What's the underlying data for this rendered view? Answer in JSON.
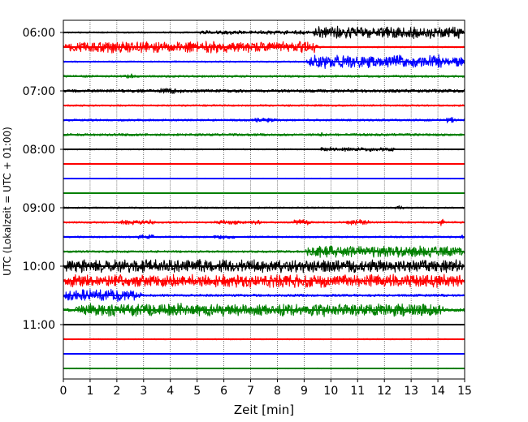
{
  "chart_data": {
    "type": "line",
    "chart_kind": "helicorder seismogram",
    "xlabel": "Zeit  [min]",
    "ylabel": "UTC (Lokalzeit = UTC + 01:00)",
    "xlim": [
      0,
      15
    ],
    "x_ticks": [
      0,
      1,
      2,
      3,
      4,
      5,
      6,
      7,
      8,
      9,
      10,
      11,
      12,
      13,
      14,
      15
    ],
    "y_tick_labels": [
      "06:00",
      "07:00",
      "08:00",
      "09:00",
      "10:00",
      "11:00"
    ],
    "grid": "vertical dotted at each minute",
    "trace_colors": [
      "#000000",
      "#ff0000",
      "#0000ff",
      "#008000"
    ],
    "traces": [
      {
        "start": "06:00",
        "color": "#000000",
        "noise": 0.05,
        "bursts": [
          {
            "from": 5.0,
            "to": 9.3,
            "amp": 0.15
          },
          {
            "from": 9.3,
            "to": 15,
            "amp": 0.45
          }
        ]
      },
      {
        "start": "06:15",
        "color": "#ff0000",
        "noise": 0.05,
        "bursts": [
          {
            "from": 0,
            "to": 9.6,
            "amp": 0.42
          }
        ]
      },
      {
        "start": "06:30",
        "color": "#0000ff",
        "noise": 0.05,
        "bursts": [
          {
            "from": 9.1,
            "to": 15,
            "amp": 0.48
          }
        ]
      },
      {
        "start": "06:45",
        "color": "#008000",
        "noise": 0.07,
        "bursts": [
          {
            "from": 2.2,
            "to": 2.7,
            "amp": 0.2
          }
        ]
      },
      {
        "start": "07:00",
        "color": "#000000",
        "noise": 0.1,
        "bursts": [
          {
            "from": 3.5,
            "to": 4.5,
            "amp": 0.22
          }
        ]
      },
      {
        "start": "07:15",
        "color": "#ff0000",
        "noise": 0.06,
        "bursts": []
      },
      {
        "start": "07:30",
        "color": "#0000ff",
        "noise": 0.07,
        "bursts": [
          {
            "from": 7.0,
            "to": 8.0,
            "amp": 0.18
          },
          {
            "from": 14.2,
            "to": 14.7,
            "amp": 0.25
          }
        ]
      },
      {
        "start": "07:45",
        "color": "#008000",
        "noise": 0.08,
        "bursts": [
          {
            "from": 9.5,
            "to": 9.8,
            "amp": 0.2
          }
        ]
      },
      {
        "start": "08:00",
        "color": "#000000",
        "noise": 0.04,
        "bursts": [
          {
            "from": 9.5,
            "to": 12.5,
            "amp": 0.15
          }
        ]
      },
      {
        "start": "08:15",
        "color": "#ff0000",
        "noise": 0.03,
        "bursts": []
      },
      {
        "start": "08:30",
        "color": "#0000ff",
        "noise": 0.03,
        "bursts": []
      },
      {
        "start": "08:45",
        "color": "#008000",
        "noise": 0.03,
        "bursts": []
      },
      {
        "start": "09:00",
        "color": "#000000",
        "noise": 0.05,
        "bursts": [
          {
            "from": 12.3,
            "to": 12.8,
            "amp": 0.2
          }
        ]
      },
      {
        "start": "09:15",
        "color": "#ff0000",
        "noise": 0.06,
        "bursts": [
          {
            "from": 2.0,
            "to": 3.5,
            "amp": 0.18
          },
          {
            "from": 5.5,
            "to": 7.5,
            "amp": 0.16
          },
          {
            "from": 8.5,
            "to": 9.3,
            "amp": 0.22
          },
          {
            "from": 10.5,
            "to": 11.5,
            "amp": 0.2
          },
          {
            "from": 14.0,
            "to": 14.3,
            "amp": 0.28
          }
        ]
      },
      {
        "start": "09:30",
        "color": "#0000ff",
        "noise": 0.06,
        "bursts": [
          {
            "from": 2.7,
            "to": 3.5,
            "amp": 0.2
          },
          {
            "from": 5.5,
            "to": 6.5,
            "amp": 0.16
          },
          {
            "from": 14.8,
            "to": 15,
            "amp": 0.22
          }
        ]
      },
      {
        "start": "09:45",
        "color": "#008000",
        "noise": 0.07,
        "bursts": [
          {
            "from": 9.0,
            "to": 15,
            "amp": 0.42
          }
        ]
      },
      {
        "start": "10:00",
        "color": "#000000",
        "noise": 0.12,
        "bursts": [
          {
            "from": 0,
            "to": 15,
            "amp": 0.48
          }
        ]
      },
      {
        "start": "10:15",
        "color": "#ff0000",
        "noise": 0.12,
        "bursts": [
          {
            "from": 0,
            "to": 15,
            "amp": 0.48
          }
        ]
      },
      {
        "start": "10:30",
        "color": "#0000ff",
        "noise": 0.08,
        "bursts": [
          {
            "from": 0,
            "to": 3.0,
            "amp": 0.45
          }
        ]
      },
      {
        "start": "10:45",
        "color": "#008000",
        "noise": 0.1,
        "bursts": [
          {
            "from": 0.4,
            "to": 14.3,
            "amp": 0.48
          }
        ]
      },
      {
        "start": "11:00",
        "color": "#000000",
        "noise": 0.03,
        "bursts": []
      },
      {
        "start": "11:15",
        "color": "#ff0000",
        "noise": 0.04,
        "bursts": []
      },
      {
        "start": "11:30",
        "color": "#0000ff",
        "noise": 0.03,
        "bursts": []
      },
      {
        "start": "11:45",
        "color": "#008000",
        "noise": 0.03,
        "bursts": []
      }
    ]
  }
}
